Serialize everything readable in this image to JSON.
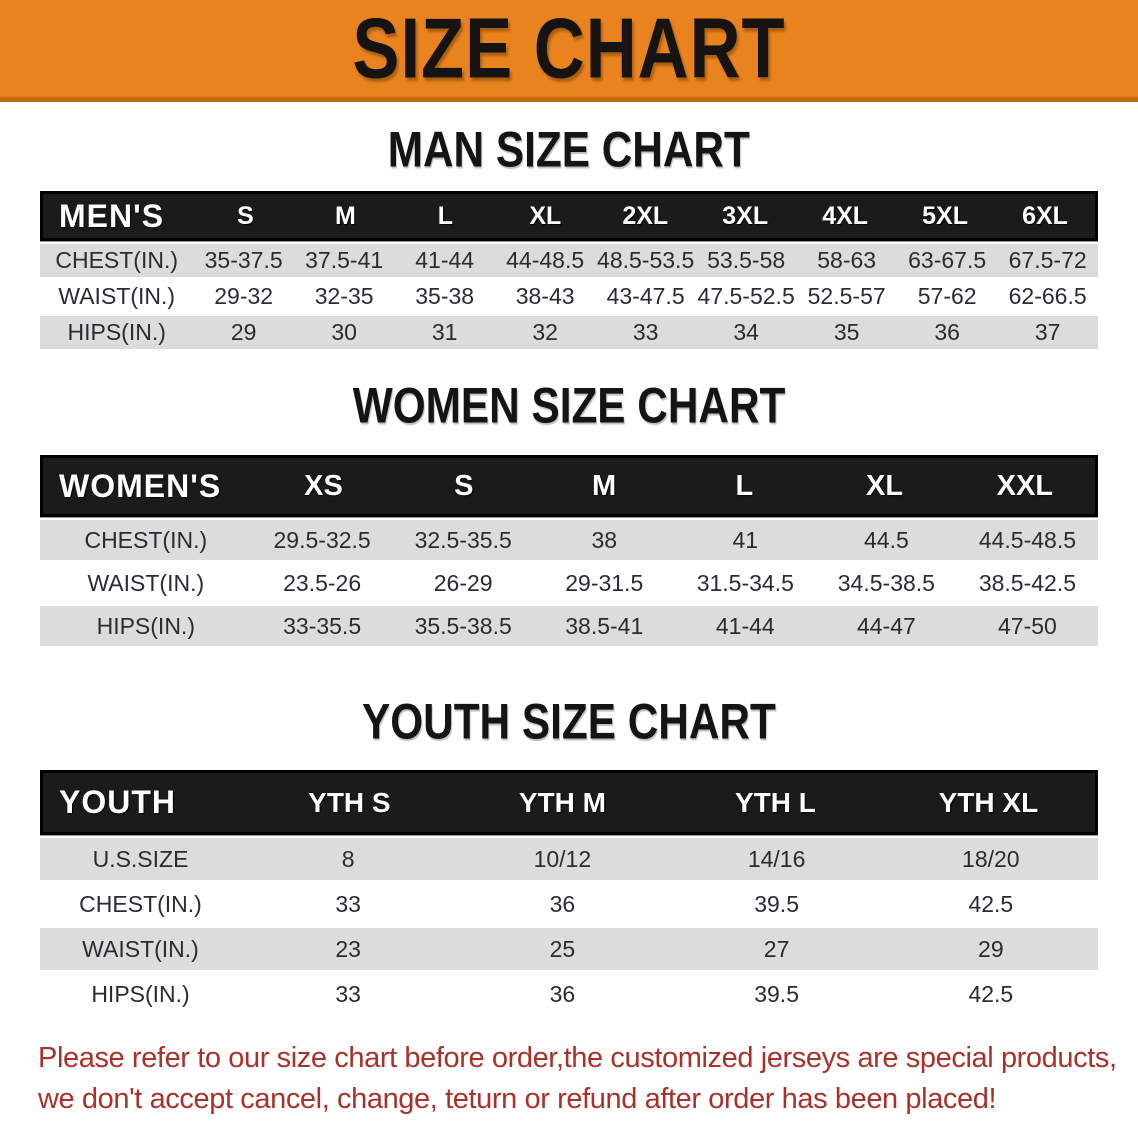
{
  "banner": {
    "title": "SIZE CHART"
  },
  "colors": {
    "banner_bg": "#E8831E",
    "banner_border": "#C36A10",
    "table_header_bg": "#1B1B1B",
    "row_shade": "#DCDCDC",
    "footer_text": "#A8322B"
  },
  "sections": [
    {
      "heading": "MAN SIZE CHART",
      "table": {
        "header": [
          "MEN'S",
          "S",
          "M",
          "L",
          "XL",
          "2XL",
          "3XL",
          "4XL",
          "5XL",
          "6XL"
        ],
        "rows": [
          [
            "CHEST(IN.)",
            "35-37.5",
            "37.5-41",
            "41-44",
            "44-48.5",
            "48.5-53.5",
            "53.5-58",
            "58-63",
            "63-67.5",
            "67.5-72"
          ],
          [
            "WAIST(IN.)",
            "29-32",
            "32-35",
            "35-38",
            "38-43",
            "43-47.5",
            "47.5-52.5",
            "52.5-57",
            "57-62",
            "62-66.5"
          ],
          [
            "HIPS(IN.)",
            "29",
            "30",
            "31",
            "32",
            "33",
            "34",
            "35",
            "36",
            "37"
          ]
        ]
      }
    },
    {
      "heading": "WOMEN SIZE CHART",
      "table": {
        "header": [
          "WOMEN'S",
          "XS",
          "S",
          "M",
          "L",
          "XL",
          "XXL"
        ],
        "rows": [
          [
            "CHEST(IN.)",
            "29.5-32.5",
            "32.5-35.5",
            "38",
            "41",
            "44.5",
            "44.5-48.5"
          ],
          [
            "WAIST(IN.)",
            "23.5-26",
            "26-29",
            "29-31.5",
            "31.5-34.5",
            "34.5-38.5",
            "38.5-42.5"
          ],
          [
            "HIPS(IN.)",
            "33-35.5",
            "35.5-38.5",
            "38.5-41",
            "41-44",
            "44-47",
            "47-50"
          ]
        ]
      }
    },
    {
      "heading": "YOUTH SIZE CHART",
      "table": {
        "header": [
          "YOUTH",
          "YTH S",
          "YTH M",
          "YTH L",
          "YTH XL"
        ],
        "rows": [
          [
            "U.S.SIZE",
            "8",
            "10/12",
            "14/16",
            "18/20"
          ],
          [
            "CHEST(IN.)",
            "33",
            "36",
            "39.5",
            "42.5"
          ],
          [
            "WAIST(IN.)",
            "23",
            "25",
            "27",
            "29"
          ],
          [
            "HIPS(IN.)",
            "33",
            "36",
            "39.5",
            "42.5"
          ]
        ]
      }
    }
  ],
  "footer": {
    "lines": [
      "Please refer to our size chart before order,the customized jerseys are special products,",
      "we don't accept cancel, change, teturn or refund after order has been placed!"
    ]
  }
}
